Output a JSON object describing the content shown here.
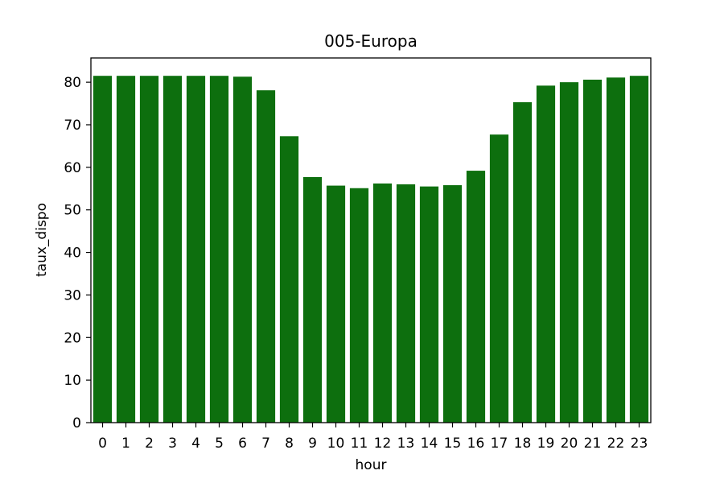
{
  "chart_data": {
    "type": "bar",
    "title": "005-Europa",
    "xlabel": "hour",
    "ylabel": "taux_dispo",
    "categories": [
      "0",
      "1",
      "2",
      "3",
      "4",
      "5",
      "6",
      "7",
      "8",
      "9",
      "10",
      "11",
      "12",
      "13",
      "14",
      "15",
      "16",
      "17",
      "18",
      "19",
      "20",
      "21",
      "22",
      "23"
    ],
    "values": [
      81.5,
      81.5,
      81.5,
      81.5,
      81.5,
      81.5,
      81.3,
      78.1,
      67.3,
      57.7,
      55.7,
      55.1,
      56.2,
      56.0,
      55.5,
      55.8,
      59.2,
      67.7,
      75.3,
      79.2,
      80.0,
      80.6,
      81.1,
      81.5
    ],
    "ylim": [
      0,
      85.7
    ],
    "yticks": [
      0,
      10,
      20,
      30,
      40,
      50,
      60,
      70,
      80
    ],
    "bar_color": "#0d6f0e",
    "grid": false,
    "legend": "none"
  }
}
